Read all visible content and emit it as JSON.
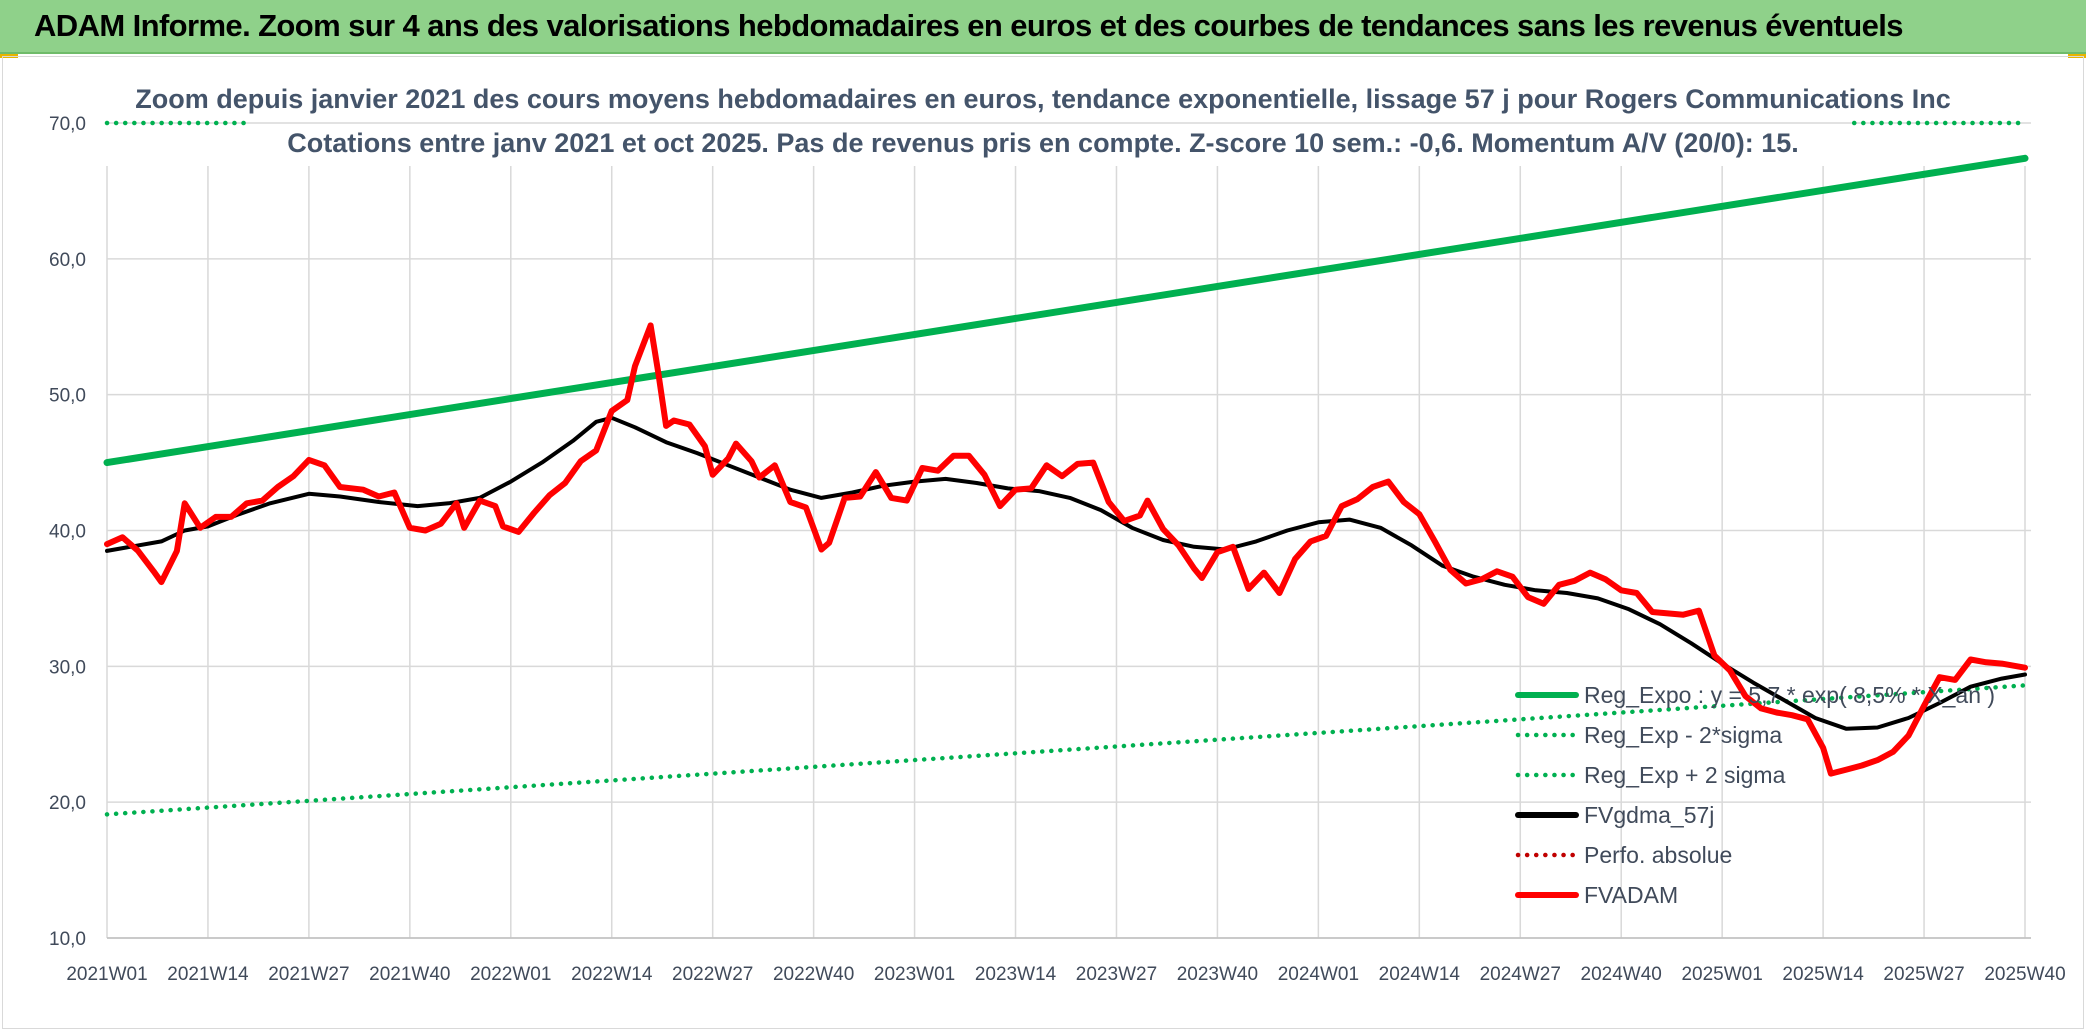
{
  "banner": {
    "title": "ADAM Informe. Zoom sur 4 ans des valorisations hebdomadaires en euros et des courbes de tendances sans les revenus éventuels"
  },
  "colors": {
    "banner_bg": "#8fd18a",
    "trend": "#00b050",
    "fv57": "#000000",
    "fvadam": "#ff0000",
    "perfo": "#c00000"
  },
  "chart_data": {
    "type": "line",
    "title": "Zoom depuis janvier 2021 des cours moyens hebdomadaires en euros, tendance exponentielle, lissage 57 j pour Rogers Communications Inc",
    "subtitle": "Cotations entre janv 2021 et oct 2025. Pas de revenus pris en compte. Z-score 10 sem.: -0,6. Momentum A/V (20/0): 15.",
    "xlabel": "",
    "ylabel": "",
    "ylim": [
      10,
      70
    ],
    "yticks": [
      "10,0",
      "20,0",
      "30,0",
      "40,0",
      "50,0",
      "60,0",
      "70,0"
    ],
    "x_index_range": [
      0,
      247
    ],
    "xticks": [
      {
        "i": 0,
        "label": "2021W01"
      },
      {
        "i": 13,
        "label": "2021W14"
      },
      {
        "i": 26,
        "label": "2021W27"
      },
      {
        "i": 39,
        "label": "2021W40"
      },
      {
        "i": 52,
        "label": "2022W01"
      },
      {
        "i": 65,
        "label": "2022W14"
      },
      {
        "i": 78,
        "label": "2022W27"
      },
      {
        "i": 91,
        "label": "2022W40"
      },
      {
        "i": 104,
        "label": "2023W01"
      },
      {
        "i": 117,
        "label": "2023W14"
      },
      {
        "i": 130,
        "label": "2023W27"
      },
      {
        "i": 143,
        "label": "2023W40"
      },
      {
        "i": 156,
        "label": "2024W01"
      },
      {
        "i": 169,
        "label": "2024W14"
      },
      {
        "i": 182,
        "label": "2024W27"
      },
      {
        "i": 195,
        "label": "2024W40"
      },
      {
        "i": 208,
        "label": "2025W01"
      },
      {
        "i": 221,
        "label": "2025W14"
      },
      {
        "i": 234,
        "label": "2025W27"
      },
      {
        "i": 247,
        "label": "2025W40"
      }
    ],
    "grid": true,
    "legend_position": "bottom-right",
    "series": [
      {
        "name": "Reg_Expo : y = 5,7 * exp( 8,5% * X_an )",
        "style": "solid",
        "color": "#00b050",
        "points": [
          [
            0,
            45.0
          ],
          [
            247,
            67.4
          ]
        ]
      },
      {
        "name": "Reg_Exp - 2*sigma",
        "style": "dotted",
        "color": "#00b050",
        "points": [
          [
            0,
            19.1
          ],
          [
            247,
            28.6
          ]
        ]
      },
      {
        "name": "Reg_Exp + 2 sigma",
        "style": "dotted",
        "color": "#00b050",
        "points": [
          [
            0,
            70.0
          ],
          [
            18,
            70.0
          ],
          [
            225,
            70.0
          ],
          [
            247,
            70.0
          ]
        ],
        "visible_segments": [
          [
            0,
            18
          ],
          [
            225,
            247
          ]
        ]
      },
      {
        "name": "FVgdma_57j",
        "style": "solid",
        "color": "#000000",
        "points": [
          [
            0,
            38.5
          ],
          [
            3,
            38.8
          ],
          [
            7,
            39.2
          ],
          [
            10,
            40.0
          ],
          [
            13,
            40.3
          ],
          [
            17,
            41.2
          ],
          [
            21,
            42.0
          ],
          [
            26,
            42.7
          ],
          [
            30,
            42.5
          ],
          [
            35,
            42.1
          ],
          [
            40,
            41.8
          ],
          [
            44,
            42.0
          ],
          [
            48,
            42.4
          ],
          [
            52,
            43.6
          ],
          [
            56,
            45.0
          ],
          [
            60,
            46.6
          ],
          [
            63,
            48.0
          ],
          [
            65,
            48.3
          ],
          [
            68,
            47.6
          ],
          [
            72,
            46.5
          ],
          [
            76,
            45.7
          ],
          [
            80,
            44.8
          ],
          [
            84,
            43.9
          ],
          [
            88,
            43.0
          ],
          [
            92,
            42.4
          ],
          [
            96,
            42.8
          ],
          [
            100,
            43.3
          ],
          [
            104,
            43.6
          ],
          [
            108,
            43.8
          ],
          [
            112,
            43.5
          ],
          [
            116,
            43.1
          ],
          [
            120,
            42.9
          ],
          [
            124,
            42.4
          ],
          [
            128,
            41.5
          ],
          [
            132,
            40.2
          ],
          [
            136,
            39.3
          ],
          [
            140,
            38.8
          ],
          [
            144,
            38.6
          ],
          [
            148,
            39.2
          ],
          [
            152,
            40.0
          ],
          [
            156,
            40.6
          ],
          [
            160,
            40.8
          ],
          [
            164,
            40.2
          ],
          [
            168,
            38.9
          ],
          [
            172,
            37.4
          ],
          [
            176,
            36.6
          ],
          [
            180,
            36.0
          ],
          [
            184,
            35.6
          ],
          [
            188,
            35.4
          ],
          [
            192,
            35.0
          ],
          [
            196,
            34.2
          ],
          [
            200,
            33.1
          ],
          [
            204,
            31.7
          ],
          [
            208,
            30.2
          ],
          [
            212,
            28.8
          ],
          [
            216,
            27.5
          ],
          [
            220,
            26.2
          ],
          [
            224,
            25.4
          ],
          [
            228,
            25.5
          ],
          [
            232,
            26.2
          ],
          [
            236,
            27.3
          ],
          [
            240,
            28.5
          ],
          [
            244,
            29.1
          ],
          [
            247,
            29.4
          ]
        ]
      },
      {
        "name": "Perfo. absolue",
        "style": "dotted",
        "color": "#c00000",
        "points": []
      },
      {
        "name": "FVADAM",
        "style": "solid",
        "color": "#ff0000",
        "points": [
          [
            0,
            39.0
          ],
          [
            2,
            39.5
          ],
          [
            4,
            38.5
          ],
          [
            6,
            37.0
          ],
          [
            7,
            36.2
          ],
          [
            9,
            38.5
          ],
          [
            10,
            42.0
          ],
          [
            12,
            40.2
          ],
          [
            14,
            41.0
          ],
          [
            16,
            41.0
          ],
          [
            18,
            42.0
          ],
          [
            20,
            42.2
          ],
          [
            22,
            43.2
          ],
          [
            24,
            44.0
          ],
          [
            26,
            45.2
          ],
          [
            28,
            44.8
          ],
          [
            30,
            43.2
          ],
          [
            33,
            43.0
          ],
          [
            35,
            42.5
          ],
          [
            37,
            42.8
          ],
          [
            39,
            40.2
          ],
          [
            41,
            40.0
          ],
          [
            43,
            40.5
          ],
          [
            45,
            42.0
          ],
          [
            46,
            40.2
          ],
          [
            48,
            42.2
          ],
          [
            50,
            41.8
          ],
          [
            51,
            40.3
          ],
          [
            53,
            39.9
          ],
          [
            55,
            41.3
          ],
          [
            57,
            42.6
          ],
          [
            59,
            43.5
          ],
          [
            61,
            45.1
          ],
          [
            63,
            45.9
          ],
          [
            65,
            48.8
          ],
          [
            67,
            49.6
          ],
          [
            68,
            52.1
          ],
          [
            70,
            55.1
          ],
          [
            71,
            51.6
          ],
          [
            72,
            47.7
          ],
          [
            73,
            48.1
          ],
          [
            75,
            47.8
          ],
          [
            77,
            46.2
          ],
          [
            78,
            44.1
          ],
          [
            80,
            45.3
          ],
          [
            81,
            46.4
          ],
          [
            83,
            45.1
          ],
          [
            84,
            43.9
          ],
          [
            86,
            44.8
          ],
          [
            88,
            42.1
          ],
          [
            90,
            41.7
          ],
          [
            92,
            38.6
          ],
          [
            93,
            39.1
          ],
          [
            95,
            42.4
          ],
          [
            97,
            42.5
          ],
          [
            99,
            44.3
          ],
          [
            101,
            42.4
          ],
          [
            103,
            42.2
          ],
          [
            105,
            44.6
          ],
          [
            107,
            44.4
          ],
          [
            109,
            45.5
          ],
          [
            111,
            45.5
          ],
          [
            113,
            44.1
          ],
          [
            115,
            41.8
          ],
          [
            117,
            43.0
          ],
          [
            119,
            43.1
          ],
          [
            121,
            44.8
          ],
          [
            123,
            44.0
          ],
          [
            125,
            44.9
          ],
          [
            127,
            45.0
          ],
          [
            129,
            42.1
          ],
          [
            131,
            40.7
          ],
          [
            133,
            41.1
          ],
          [
            134,
            42.2
          ],
          [
            136,
            40.1
          ],
          [
            138,
            38.9
          ],
          [
            140,
            37.2
          ],
          [
            141,
            36.5
          ],
          [
            143,
            38.4
          ],
          [
            145,
            38.8
          ],
          [
            147,
            35.7
          ],
          [
            149,
            36.9
          ],
          [
            151,
            35.4
          ],
          [
            153,
            37.9
          ],
          [
            155,
            39.2
          ],
          [
            157,
            39.6
          ],
          [
            159,
            41.8
          ],
          [
            161,
            42.3
          ],
          [
            163,
            43.2
          ],
          [
            165,
            43.6
          ],
          [
            167,
            42.1
          ],
          [
            169,
            41.2
          ],
          [
            171,
            39.2
          ],
          [
            173,
            37.1
          ],
          [
            175,
            36.1
          ],
          [
            177,
            36.4
          ],
          [
            179,
            37.0
          ],
          [
            181,
            36.6
          ],
          [
            183,
            35.1
          ],
          [
            185,
            34.6
          ],
          [
            187,
            36.0
          ],
          [
            189,
            36.3
          ],
          [
            191,
            36.9
          ],
          [
            193,
            36.4
          ],
          [
            195,
            35.6
          ],
          [
            197,
            35.4
          ],
          [
            199,
            34.0
          ],
          [
            201,
            33.9
          ],
          [
            203,
            33.8
          ],
          [
            205,
            34.1
          ],
          [
            207,
            30.8
          ],
          [
            209,
            29.7
          ],
          [
            211,
            27.8
          ],
          [
            213,
            26.9
          ],
          [
            215,
            26.6
          ],
          [
            217,
            26.4
          ],
          [
            219,
            26.1
          ],
          [
            221,
            24.0
          ],
          [
            222,
            22.1
          ],
          [
            224,
            22.4
          ],
          [
            226,
            22.7
          ],
          [
            228,
            23.1
          ],
          [
            230,
            23.7
          ],
          [
            232,
            24.9
          ],
          [
            234,
            27.1
          ],
          [
            236,
            29.2
          ],
          [
            238,
            29.0
          ],
          [
            240,
            30.5
          ],
          [
            242,
            30.3
          ],
          [
            244,
            30.2
          ],
          [
            247,
            29.9
          ]
        ]
      }
    ]
  },
  "legend": [
    {
      "label": "Reg_Expo : y = 5,7 * exp( 8,5% * X_an )",
      "style": "solid",
      "color": "#00b050"
    },
    {
      "label": "Reg_Exp - 2*sigma",
      "style": "dotted",
      "color": "#00b050"
    },
    {
      "label": "Reg_Exp + 2 sigma",
      "style": "dotted",
      "color": "#00b050"
    },
    {
      "label": "FVgdma_57j",
      "style": "solid",
      "color": "#000000"
    },
    {
      "label": "Perfo. absolue",
      "style": "dotted",
      "color": "#c00000"
    },
    {
      "label": "FVADAM",
      "style": "solid",
      "color": "#ff0000"
    }
  ]
}
